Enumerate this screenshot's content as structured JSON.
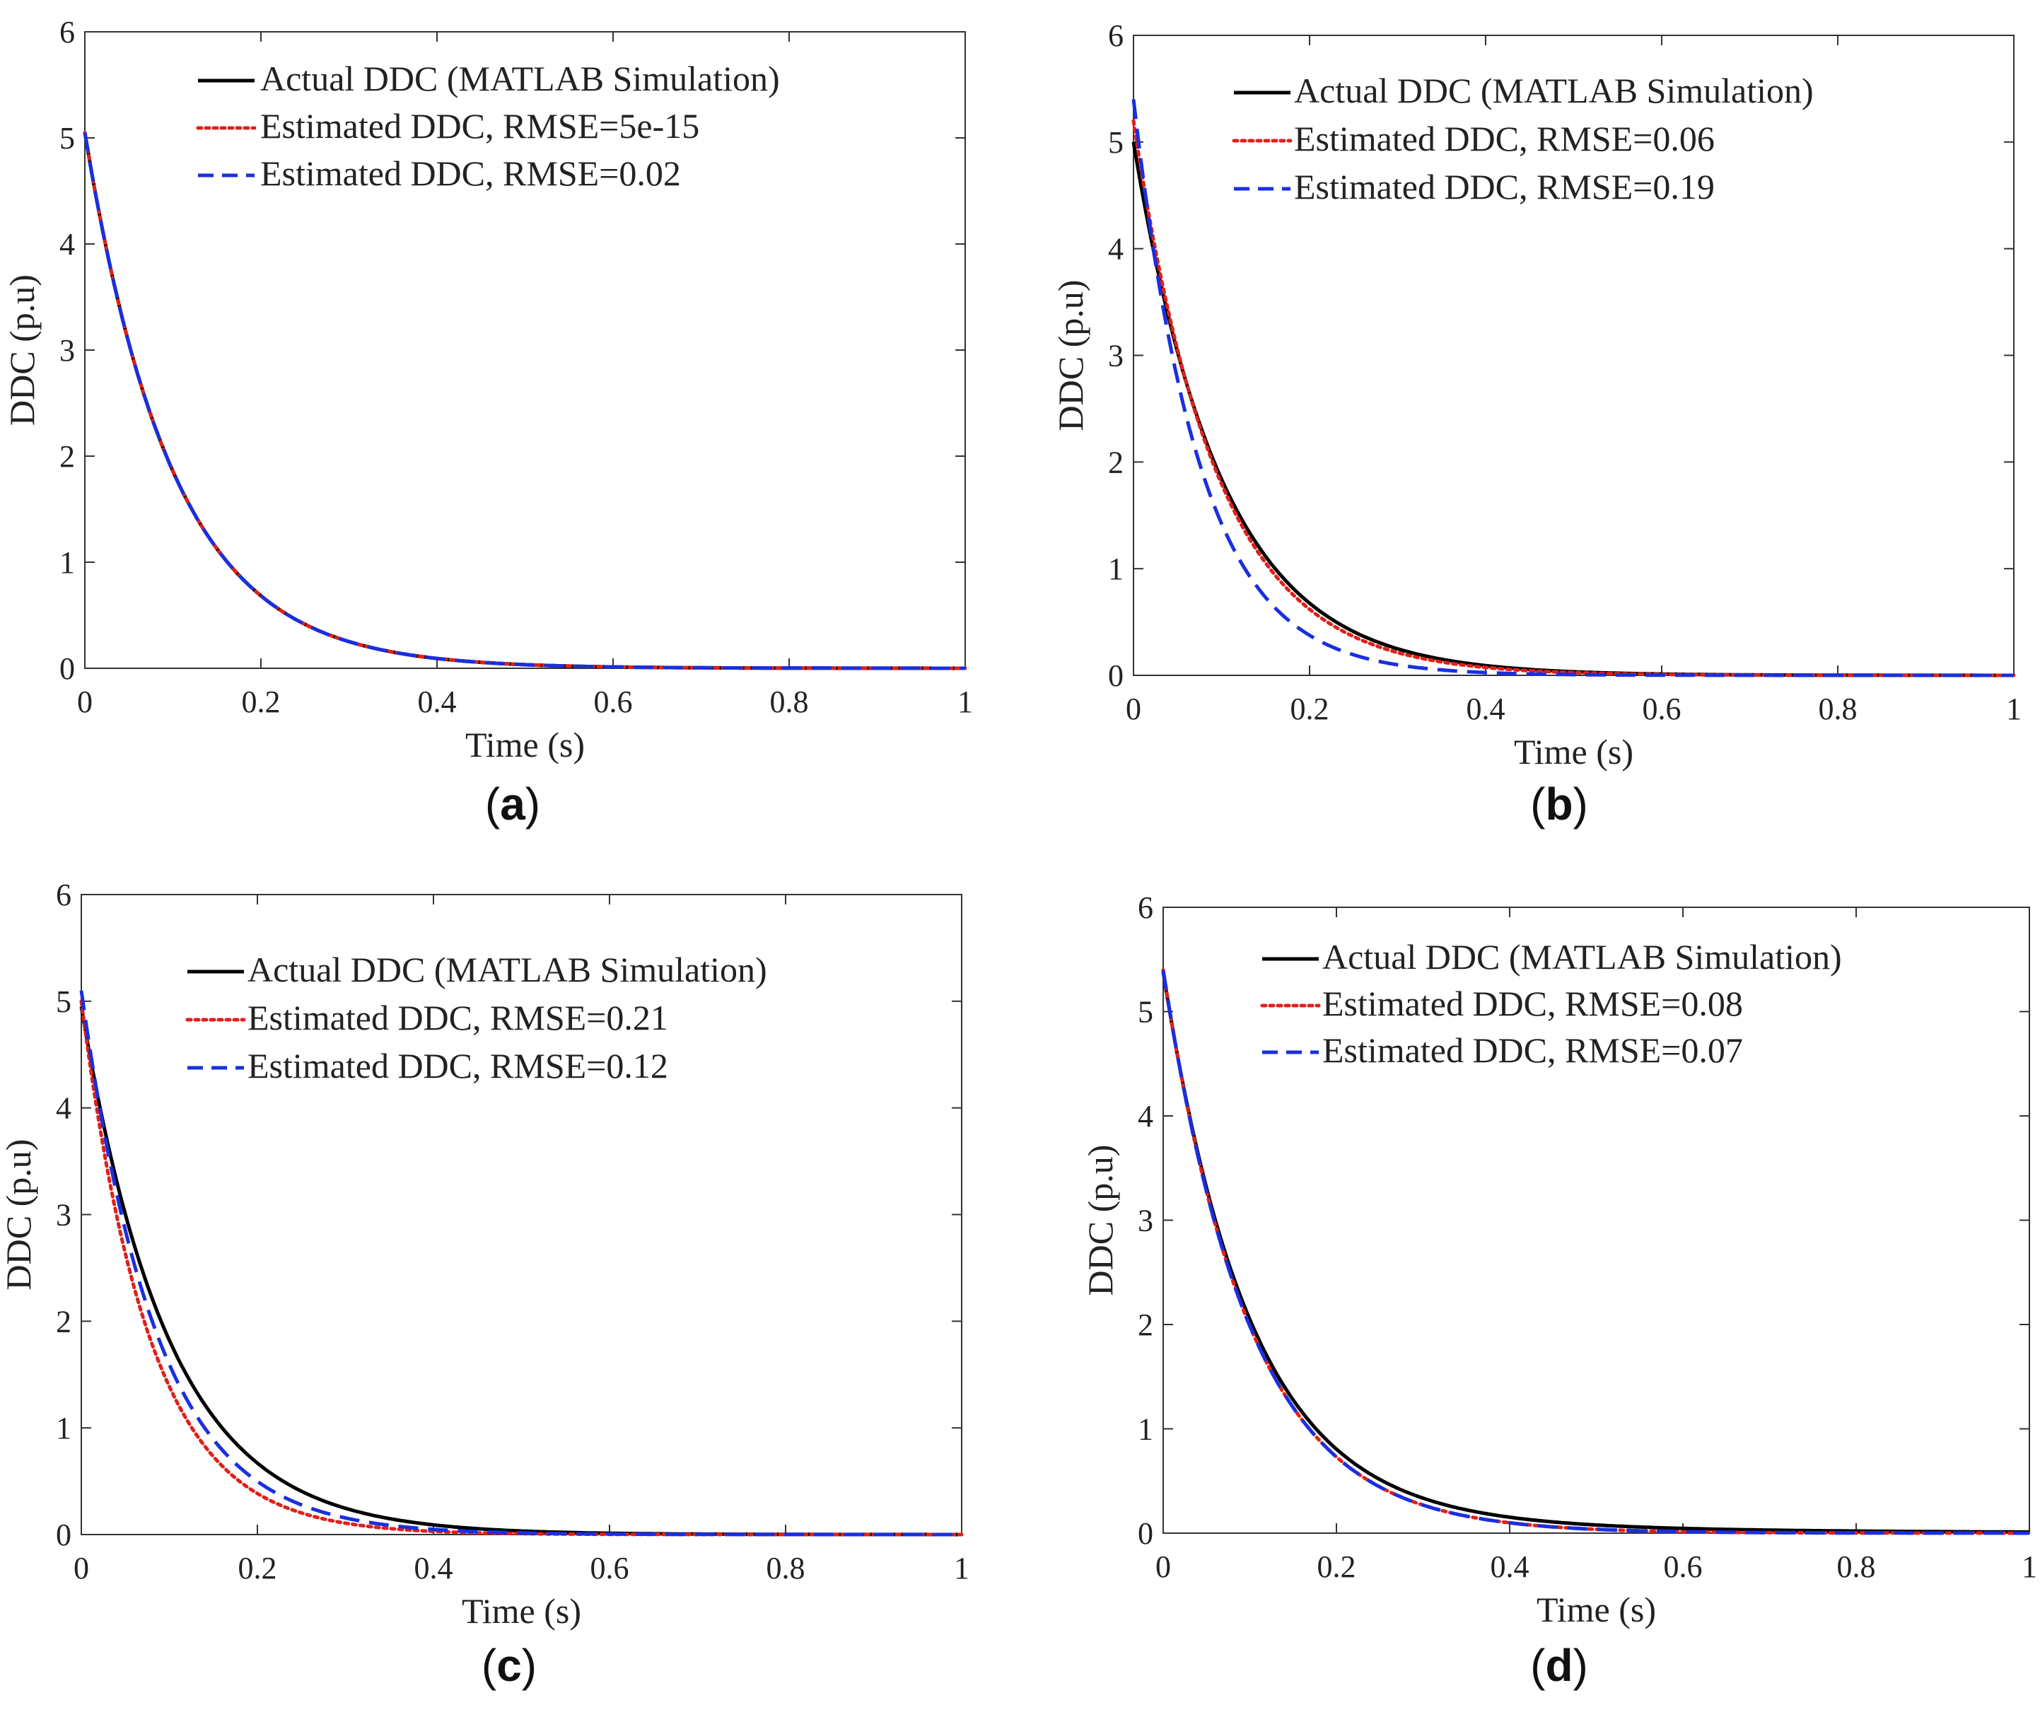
{
  "figure": {
    "panels": [
      {
        "caption_open": "(",
        "caption_letter": "a",
        "caption_close": ")"
      },
      {
        "caption_open": "(",
        "caption_letter": "b",
        "caption_close": ")"
      },
      {
        "caption_open": "(",
        "caption_letter": "c",
        "caption_close": ")"
      },
      {
        "caption_open": "(",
        "caption_letter": "d",
        "caption_close": ")"
      }
    ]
  },
  "colors": {
    "actual": "#000000",
    "estimated_1": "#e0201a",
    "estimated_2": "#1a2fe0",
    "axis": "#333333"
  },
  "chart_data": [
    {
      "type": "line",
      "panel": "a",
      "xlabel": "Time (s)",
      "ylabel": "DDC (p.u)",
      "xlim": [
        0,
        1
      ],
      "ylim": [
        0,
        6
      ],
      "xticks": [
        0,
        0.2,
        0.4,
        0.6,
        0.8,
        1
      ],
      "xtick_labels": [
        "0",
        "0.2",
        "0.4",
        "0.6",
        "0.8",
        "1"
      ],
      "yticks": [
        0,
        1,
        2,
        3,
        4,
        5,
        6
      ],
      "ytick_labels": [
        "0",
        "1",
        "2",
        "3",
        "4",
        "5",
        "6"
      ],
      "legend_position": "top",
      "series": [
        {
          "name": "Actual DDC (MATLAB Simulation)",
          "style": "solid",
          "color": "#000000",
          "a0": 5.05,
          "tau": 0.1,
          "tail": 0
        },
        {
          "name": "Estimated DDC, RMSE=5e-15",
          "style": "dotted",
          "color": "#e0201a",
          "a0": 5.05,
          "tau": 0.1,
          "tail": 0
        },
        {
          "name": "Estimated DDC, RMSE=0.02",
          "style": "dashed",
          "color": "#1a2fe0",
          "a0": 5.05,
          "tau": 0.1,
          "tail": 0
        }
      ]
    },
    {
      "type": "line",
      "panel": "b",
      "xlabel": "Time (s)",
      "ylabel": "DDC (p.u)",
      "xlim": [
        0,
        1
      ],
      "ylim": [
        0,
        6
      ],
      "xticks": [
        0,
        0.2,
        0.4,
        0.6,
        0.8,
        1
      ],
      "xtick_labels": [
        "0",
        "0.2",
        "0.4",
        "0.6",
        "0.8",
        "1"
      ],
      "yticks": [
        0,
        1,
        2,
        3,
        4,
        5,
        6
      ],
      "ytick_labels": [
        "0",
        "1",
        "2",
        "3",
        "4",
        "5",
        "6"
      ],
      "legend_position": "top",
      "series": [
        {
          "name": "Actual DDC (MATLAB Simulation)",
          "style": "solid",
          "color": "#000000",
          "a0": 5.0,
          "tau": 0.1,
          "tail": 0
        },
        {
          "name": "Estimated DDC, RMSE=0.06",
          "style": "dotted",
          "color": "#e0201a",
          "a0": 5.2,
          "tau": 0.094,
          "tail": 0
        },
        {
          "name": "Estimated DDC, RMSE=0.19",
          "style": "dashed",
          "color": "#1a2fe0",
          "a0": 5.4,
          "tau": 0.075,
          "tail": 0
        }
      ]
    },
    {
      "type": "line",
      "panel": "c",
      "xlabel": "Time (s)",
      "ylabel": "DDC (p.u)",
      "xlim": [
        0,
        1
      ],
      "ylim": [
        0,
        6
      ],
      "xticks": [
        0,
        0.2,
        0.4,
        0.6,
        0.8,
        1
      ],
      "xtick_labels": [
        "0",
        "0.2",
        "0.4",
        "0.6",
        "0.8",
        "1"
      ],
      "yticks": [
        0,
        1,
        2,
        3,
        4,
        5,
        6
      ],
      "ytick_labels": [
        "0",
        "1",
        "2",
        "3",
        "4",
        "5",
        "6"
      ],
      "legend_position": "top",
      "series": [
        {
          "name": "Actual DDC (MATLAB Simulation)",
          "style": "solid",
          "color": "#000000",
          "a0": 4.95,
          "tau": 0.1,
          "tail": 0
        },
        {
          "name": "Estimated DDC, RMSE=0.21",
          "style": "dotted",
          "color": "#e0201a",
          "a0": 5.0,
          "tau": 0.078,
          "tail": 0
        },
        {
          "name": "Estimated DDC, RMSE=0.12",
          "style": "dashed",
          "color": "#1a2fe0",
          "a0": 5.1,
          "tau": 0.086,
          "tail": 0
        }
      ]
    },
    {
      "type": "line",
      "panel": "d",
      "xlabel": "Time (s)",
      "ylabel": "DDC (p.u)",
      "xlim": [
        0,
        1
      ],
      "ylim": [
        0,
        6
      ],
      "xticks": [
        0,
        0.2,
        0.4,
        0.6,
        0.8,
        1
      ],
      "xtick_labels": [
        "0",
        "0.2",
        "0.4",
        "0.6",
        "0.8",
        "1"
      ],
      "yticks": [
        0,
        1,
        2,
        3,
        4,
        5,
        6
      ],
      "ytick_labels": [
        "0",
        "1",
        "2",
        "3",
        "4",
        "5",
        "6"
      ],
      "legend_position": "top",
      "series": [
        {
          "name": "Actual DDC (MATLAB Simulation)",
          "style": "solid",
          "color": "#000000",
          "a0": 5.2,
          "tau": 0.1,
          "tail": 0.18,
          "tail_tau": 0.35
        },
        {
          "name": "Estimated DDC, RMSE=0.08",
          "style": "dotted",
          "color": "#e0201a",
          "a0": 5.4,
          "tau": 0.1,
          "tail": 0
        },
        {
          "name": "Estimated DDC, RMSE=0.07",
          "style": "dashed",
          "color": "#1a2fe0",
          "a0": 5.4,
          "tau": 0.1,
          "tail": 0
        }
      ]
    }
  ]
}
